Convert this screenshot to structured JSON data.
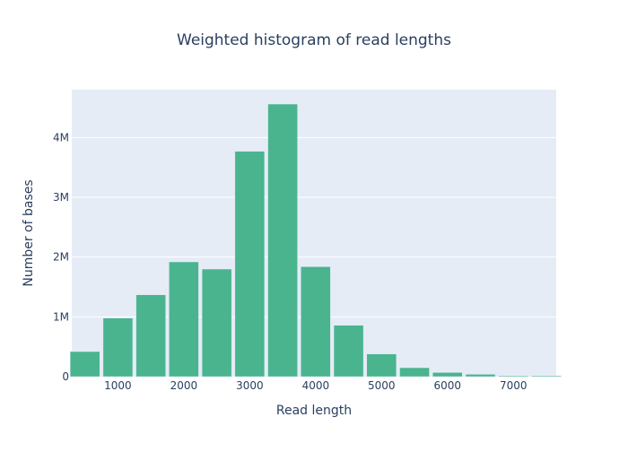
{
  "chart_data": {
    "type": "bar",
    "title": "Weighted histogram of read lengths",
    "xlabel": "Read length",
    "ylabel": "Number of bases",
    "bin_width": 500,
    "x": [
      500,
      1000,
      1500,
      2000,
      2500,
      3000,
      3500,
      4000,
      4500,
      5000,
      5500,
      6000,
      6500,
      7000,
      7500
    ],
    "values": [
      420000,
      980000,
      1370000,
      1920000,
      1800000,
      3770000,
      4560000,
      1840000,
      860000,
      380000,
      150000,
      70000,
      40000,
      15000,
      15000
    ],
    "xlim": [
      300,
      7650
    ],
    "ylim": [
      0,
      4800000
    ],
    "x_ticks": [
      {
        "value": 1000,
        "label": "1000"
      },
      {
        "value": 2000,
        "label": "2000"
      },
      {
        "value": 3000,
        "label": "3000"
      },
      {
        "value": 4000,
        "label": "4000"
      },
      {
        "value": 5000,
        "label": "5000"
      },
      {
        "value": 6000,
        "label": "6000"
      },
      {
        "value": 7000,
        "label": "7000"
      }
    ],
    "y_ticks": [
      {
        "value": 0,
        "label": "0"
      },
      {
        "value": 1000000,
        "label": "1M"
      },
      {
        "value": 2000000,
        "label": "2M"
      },
      {
        "value": 3000000,
        "label": "3M"
      },
      {
        "value": 4000000,
        "label": "4M"
      }
    ],
    "grid": true,
    "colors": {
      "bar": "#4ab48e",
      "plot_bg": "#e5ecf6",
      "grid": "#ffffff",
      "text": "#2a3f5f"
    }
  }
}
